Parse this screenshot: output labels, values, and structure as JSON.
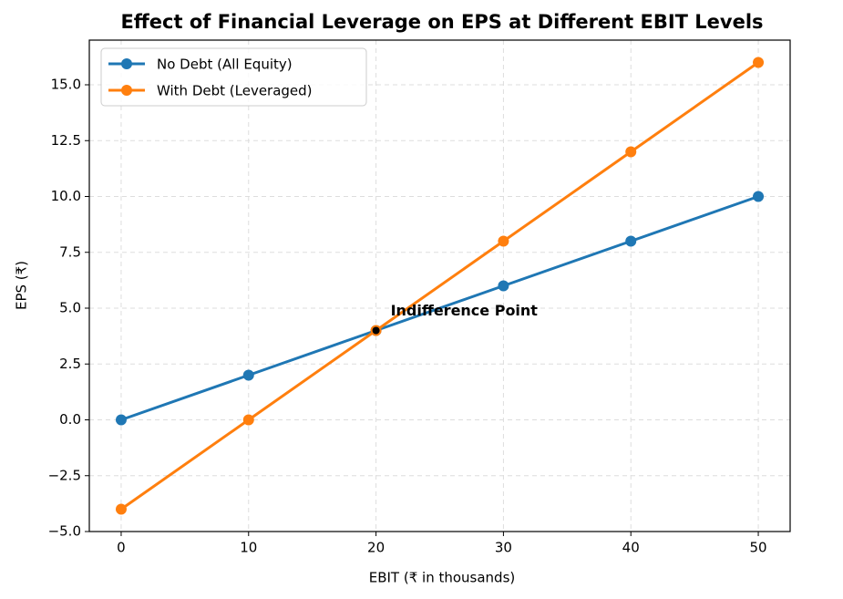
{
  "chart_data": {
    "type": "line",
    "title": "Effect of Financial Leverage on EPS at Different EBIT Levels",
    "x_label": "EBIT (₹ in thousands)",
    "y_label": "EPS (₹)",
    "x": [
      0,
      10,
      20,
      30,
      40,
      50
    ],
    "series": [
      {
        "name": "No Debt (All Equity)",
        "color": "#1f77b4",
        "values": [
          0,
          2,
          4,
          6,
          8,
          10
        ]
      },
      {
        "name": "With Debt (Leveraged)",
        "color": "#ff7f0e",
        "values": [
          -4,
          0,
          4,
          8,
          12,
          16
        ]
      }
    ],
    "annotation": {
      "text": "Indifference Point",
      "x": 20,
      "y": 4,
      "color": "#000000"
    },
    "xlim": [
      -2.5,
      52.5
    ],
    "ylim": [
      -5,
      17
    ],
    "xticks": [
      0,
      10,
      20,
      30,
      40,
      50
    ],
    "yticks": [
      {
        "value": -5,
        "label": "−5.0"
      },
      {
        "value": -2.5,
        "label": "−2.5"
      },
      {
        "value": 0,
        "label": "0.0"
      },
      {
        "value": 2.5,
        "label": "2.5"
      },
      {
        "value": 5,
        "label": "5.0"
      },
      {
        "value": 7.5,
        "label": "7.5"
      },
      {
        "value": 10,
        "label": "10.0"
      },
      {
        "value": 12.5,
        "label": "12.5"
      },
      {
        "value": 15,
        "label": "15.0"
      }
    ],
    "grid": true,
    "legend": "upper-left"
  }
}
